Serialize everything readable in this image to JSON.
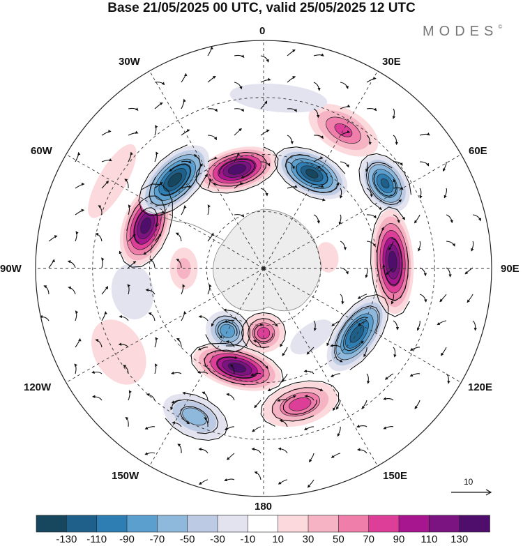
{
  "title": "Base 21/05/2025 00 UTC, valid 25/05/2025 12 UTC",
  "brand": "MODES",
  "brand_mark": "©",
  "longitude_labels": {
    "top": "0",
    "top_right": "30E",
    "right_upper": "60E",
    "right": "90E",
    "right_lower": "120E",
    "bottom_right": "150E",
    "bottom": "180",
    "bottom_left": "150W",
    "left_lower": "120W",
    "left": "90W",
    "left_upper": "60W",
    "top_left": "30W"
  },
  "reference_vector": {
    "label": "10"
  },
  "colorbar": {
    "tick_labels": [
      "-130",
      "-110",
      "-90",
      "-70",
      "-50",
      "-30",
      "-10",
      "10",
      "30",
      "50",
      "70",
      "90",
      "110",
      "130"
    ],
    "colors": [
      "#17465f",
      "#1e6089",
      "#2f7eb3",
      "#5b9fcf",
      "#8eb9dc",
      "#bccbe3",
      "#e3e3ef",
      "#ffffff",
      "#fbd9dc",
      "#f6b3c4",
      "#ef7eaa",
      "#dd3f98",
      "#a8168f",
      "#7b1481",
      "#4f0e6b"
    ]
  },
  "anomaly_cells": [
    {
      "lon": 195,
      "colat": 27,
      "value": 145,
      "rx": 58,
      "ry": 30
    },
    {
      "lon": 250,
      "colat": 33,
      "value": 140,
      "rx": 60,
      "ry": 33
    },
    {
      "lon": 345,
      "colat": 27,
      "value": 140,
      "rx": 65,
      "ry": 30
    },
    {
      "lon": 225,
      "colat": 33,
      "value": -140,
      "rx": 62,
      "ry": 32
    },
    {
      "lon": 55,
      "colat": 30,
      "value": -120,
      "rx": 62,
      "ry": 30
    },
    {
      "lon": 153,
      "colat": 28,
      "value": -135,
      "rx": 55,
      "ry": 30
    },
    {
      "lon": 125,
      "colat": 39,
      "value": -110,
      "rx": 45,
      "ry": 30
    },
    {
      "lon": 93,
      "colat": 34,
      "value": 140,
      "rx": 75,
      "ry": 30
    },
    {
      "lon": 15,
      "colat": 37,
      "value": 75,
      "rx": 55,
      "ry": 30
    },
    {
      "lon": 330,
      "colat": 19,
      "value": -80,
      "rx": 32,
      "ry": 28
    },
    {
      "lon": 0,
      "colat": 17,
      "value": 75,
      "rx": 30,
      "ry": 28
    },
    {
      "lon": 335,
      "colat": 43,
      "value": -55,
      "rx": 48,
      "ry": 28
    },
    {
      "lon": 300,
      "colat": 44,
      "value": 25,
      "rx": 50,
      "ry": 35
    },
    {
      "lon": 150,
      "colat": 42,
      "value": 70,
      "rx": 55,
      "ry": 30
    },
    {
      "lon": 100,
      "colat": 17,
      "value": 20,
      "rx": 22,
      "ry": 16
    },
    {
      "lon": 280,
      "colat": 35,
      "value": -22,
      "rx": 40,
      "ry": 30
    },
    {
      "lon": 175,
      "colat": 45,
      "value": -25,
      "rx": 70,
      "ry": 20
    },
    {
      "lon": 240,
      "colat": 46,
      "value": 25,
      "rx": 60,
      "ry": 20
    },
    {
      "lon": 35,
      "colat": 22,
      "value": -25,
      "rx": 35,
      "ry": 18
    },
    {
      "lon": 270,
      "colat": 21,
      "value": 30,
      "rx": 30,
      "ry": 20
    }
  ]
}
